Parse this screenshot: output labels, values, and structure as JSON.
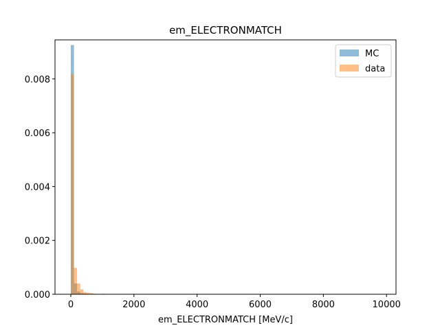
{
  "chart_data": {
    "type": "bar",
    "title": "em_ELECTRONMATCH",
    "xlabel": "em_ELECTRONMATCH [MeV/c]",
    "ylabel": "",
    "xlim": [
      -500,
      10300
    ],
    "ylim": [
      0,
      0.00945
    ],
    "xticks": [
      0,
      2000,
      4000,
      6000,
      8000,
      10000
    ],
    "yticks": [
      0.0,
      0.002,
      0.004,
      0.006,
      0.008
    ],
    "ytick_labels": [
      "0.000",
      "0.002",
      "0.004",
      "0.006",
      "0.008"
    ],
    "bin_edges": [
      0,
      100,
      200,
      300,
      400,
      500,
      600,
      700,
      800,
      900,
      1000,
      1100,
      1200
    ],
    "series": [
      {
        "name": "MC",
        "color": "#1f77b4",
        "alpha": 0.5,
        "values": [
          0.00926,
          0.0004,
          0.0001,
          4e-05,
          2e-05,
          1e-05,
          0.0,
          0.0,
          0.0,
          0.0,
          0.0,
          0.0
        ]
      },
      {
        "name": "data",
        "color": "#ff7f0e",
        "alpha": 0.5,
        "values": [
          0.00818,
          0.00098,
          0.0004,
          0.00018,
          8e-05,
          6e-05,
          4e-05,
          2e-05,
          1e-05,
          0.0,
          2e-05,
          0.0
        ]
      }
    ],
    "legend_position": "top-right"
  }
}
